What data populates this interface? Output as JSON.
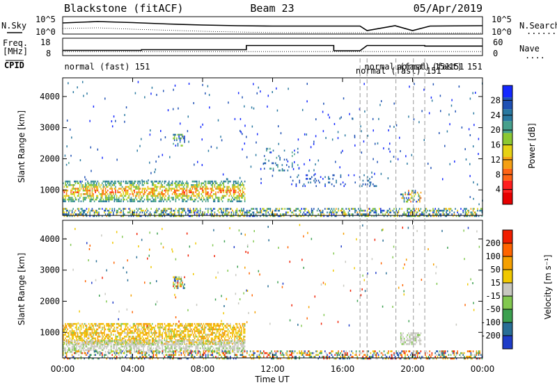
{
  "header": {
    "station": "Blackstone (fitACF)",
    "beam": "Beam 23",
    "date": "05/Apr/2019"
  },
  "labels": {
    "nsky": "N.Sky",
    "nsearch": "N.Search",
    "freq_line1": "Freq.",
    "freq_line2": "[MHz]",
    "nave": "Nave",
    "cpid": "CPID",
    "dots": "......",
    "dots_short": "...."
  },
  "noise_axis": {
    "left_top": "10^5",
    "left_bottom": "10^0",
    "right_top": "10^5",
    "right_bottom": "10^0"
  },
  "freq_axis": {
    "left_top": "18",
    "left_bottom": "8",
    "right_top": "60",
    "right_bottom": "0"
  },
  "cpid_labels": [
    {
      "text": "normal (fast) 151",
      "t": 0.1,
      "row": 0
    },
    {
      "text": "normal (fast) 151",
      "t": 17.25,
      "row": 0
    },
    {
      "text": "normal (fast) 151",
      "t": 16.75,
      "row": 1
    },
    {
      "text": "normal (fast) 151",
      "t": 19.1,
      "row": 0
    },
    {
      "text": "-151",
      "t": 21.8,
      "row": 0
    }
  ],
  "cpid_changes": [
    17.0,
    17.4,
    19.05,
    20.05,
    20.7
  ],
  "time_axis": {
    "title": "Time UT",
    "range": [
      0,
      24
    ],
    "ticks": [
      {
        "v": 0,
        "label": "00:00"
      },
      {
        "v": 4,
        "label": "04:00"
      },
      {
        "v": 8,
        "label": "08:00"
      },
      {
        "v": 12,
        "label": "12:00"
      },
      {
        "v": 16,
        "label": "16:00"
      },
      {
        "v": 20,
        "label": "20:00"
      },
      {
        "v": 24,
        "label": "00:00"
      }
    ]
  },
  "range_axis": {
    "title": "Slant Range [km]",
    "range": [
      180,
      4600
    ],
    "ticks": [
      1000,
      2000,
      3000,
      4000
    ]
  },
  "power_colorbar": {
    "title": "Power [dB]",
    "ticks": [
      "4",
      "8",
      "12",
      "16",
      "20",
      "24",
      "28"
    ],
    "colors": [
      "#1428ff",
      "#1e50b4",
      "#2878a0",
      "#46a08c",
      "#8cc832",
      "#e6d214",
      "#f5a014",
      "#ff6414",
      "#ff1e1e",
      "#e60000"
    ]
  },
  "velocity_colorbar": {
    "title": "Velocity [m s⁻¹]",
    "ticks": [
      "200",
      "100",
      "50",
      "15",
      "-15",
      "-50",
      "-100",
      "-200"
    ],
    "colors": [
      "#1e3cc8",
      "#286e96",
      "#3ca050",
      "#82c850",
      "#c8c8c0",
      "#f0c800",
      "#f5a000",
      "#ff6400",
      "#f01e00"
    ]
  },
  "chart_data": [
    {
      "type": "heatmap",
      "name": "power",
      "title": "Power [dB]",
      "xlabel": "Time UT",
      "ylabel": "Slant Range [km]",
      "xlim": [
        0,
        24
      ],
      "ylim": [
        180,
        4600
      ],
      "patches": [
        {
          "t0": 0.0,
          "t1": 10.4,
          "r0": 650,
          "r1": 1300,
          "level": "strong",
          "values_db": [
            8,
            28
          ]
        },
        {
          "t0": 0.0,
          "t1": 24.0,
          "r0": 180,
          "r1": 420,
          "level": "scattered",
          "values_db": [
            4,
            20
          ]
        },
        {
          "t0": 0.0,
          "t1": 0.5,
          "r0": 1800,
          "r1": 2300,
          "level": "weak",
          "values_db": [
            4,
            12
          ]
        },
        {
          "t0": 6.3,
          "t1": 7.0,
          "r0": 2450,
          "r1": 2800,
          "level": "medium",
          "values_db": [
            4,
            16
          ]
        },
        {
          "t0": 11.5,
          "t1": 13.5,
          "r0": 1650,
          "r1": 2350,
          "level": "weak",
          "values_db": [
            4,
            12
          ]
        },
        {
          "t0": 13.0,
          "t1": 18.0,
          "r0": 1150,
          "r1": 1500,
          "level": "weak",
          "values_db": [
            4,
            10
          ]
        },
        {
          "t0": 19.3,
          "t1": 20.5,
          "r0": 650,
          "r1": 1000,
          "level": "medium",
          "values_db": [
            4,
            24
          ]
        },
        {
          "t0": 23.2,
          "t1": 24.0,
          "r0": 550,
          "r1": 800,
          "level": "weak",
          "values_db": [
            4,
            10
          ]
        }
      ]
    },
    {
      "type": "heatmap",
      "name": "velocity",
      "title": "Velocity [m s-1]",
      "xlabel": "Time UT",
      "ylabel": "Slant Range [km]",
      "xlim": [
        0,
        24
      ],
      "ylim": [
        180,
        4600
      ],
      "patches": [
        {
          "t0": 0.0,
          "t1": 10.4,
          "r0": 650,
          "r1": 1300,
          "velocity_ms": [
            -50,
            -15
          ],
          "dominant": "negative"
        },
        {
          "t0": 0.0,
          "t1": 10.4,
          "r0": 400,
          "r1": 750,
          "velocity_ms": [
            -15,
            15
          ],
          "dominant": "near-zero"
        },
        {
          "t0": 0.0,
          "t1": 24.0,
          "r0": 180,
          "r1": 420,
          "velocity_ms": [
            -50,
            50
          ],
          "dominant": "mixed"
        },
        {
          "t0": 6.3,
          "t1": 7.0,
          "r0": 2450,
          "r1": 2800,
          "velocity_ms": [
            -15,
            50
          ],
          "dominant": "mixed"
        },
        {
          "t0": 19.3,
          "t1": 20.5,
          "r0": 650,
          "r1": 1000,
          "velocity_ms": [
            -15,
            15
          ],
          "dominant": "near-zero"
        }
      ]
    },
    {
      "type": "line",
      "name": "noise",
      "series": [
        {
          "name": "N.Sky",
          "x": [
            0,
            2,
            4,
            6,
            8,
            10,
            12,
            17,
            17.4,
            19,
            20,
            21,
            24
          ],
          "values_log10": [
            3.2,
            3.6,
            3.3,
            2.9,
            2.6,
            2.4,
            2.3,
            2.3,
            1.0,
            2.4,
            1.0,
            2.3,
            2.4
          ]
        },
        {
          "name": "N.Search",
          "x": [
            0,
            2,
            4,
            6,
            8,
            10,
            12,
            24
          ],
          "values_log10": [
            1.6,
            1.8,
            1.4,
            1.1,
            0.8,
            0.6,
            0.4,
            0.3
          ]
        }
      ],
      "ylim_log10": [
        0,
        5
      ]
    },
    {
      "type": "line",
      "name": "frequency",
      "series": [
        {
          "name": "Freq.",
          "x": [
            0,
            4.5,
            4.5,
            10.5,
            10.5,
            15.5,
            15.5,
            17.0,
            17.4,
            20.7,
            20.7,
            24
          ],
          "values_mhz": [
            11.0,
            11.0,
            11.4,
            11.4,
            13.8,
            13.8,
            10.8,
            10.8,
            13.8,
            13.8,
            13.5,
            13.5
          ]
        },
        {
          "name": "Nave",
          "x": [
            0,
            24
          ],
          "values": [
            14,
            14
          ]
        }
      ],
      "ylim_mhz": [
        8,
        18
      ],
      "ylim_nave": [
        0,
        60
      ]
    }
  ]
}
